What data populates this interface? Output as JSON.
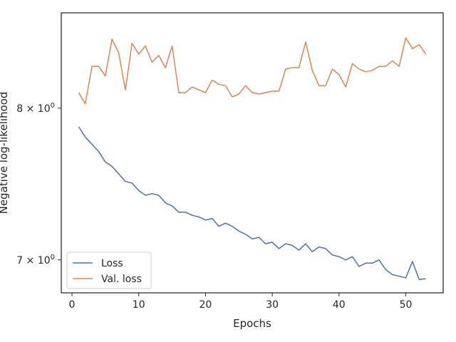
{
  "chart_data": {
    "type": "line",
    "title": "",
    "xlabel": "Epochs",
    "ylabel": "Negative log-likelihood",
    "y_scale": "log",
    "xlim": [
      -1.6,
      55.6
    ],
    "ylim": [
      6.8,
      8.7
    ],
    "x_ticks": [
      0,
      10,
      20,
      30,
      40,
      50
    ],
    "x_tick_labels": [
      "0",
      "10",
      "20",
      "30",
      "40",
      "50"
    ],
    "y_ticks": [
      7,
      8
    ],
    "y_tick_base": [
      "7 × 10",
      "8 × 10"
    ],
    "y_tick_exp": [
      "0",
      "0"
    ],
    "grid": false,
    "legend_position": "lower-left",
    "series": [
      {
        "name": "Loss",
        "color": "#4c72b0",
        "x": [
          1,
          2,
          3,
          4,
          5,
          6,
          7,
          8,
          9,
          10,
          11,
          12,
          13,
          14,
          15,
          16,
          17,
          18,
          19,
          20,
          21,
          22,
          23,
          24,
          25,
          26,
          27,
          28,
          29,
          30,
          31,
          32,
          33,
          34,
          35,
          36,
          37,
          38,
          39,
          40,
          41,
          42,
          43,
          44,
          45,
          46,
          47,
          48,
          49,
          50,
          51,
          52,
          53
        ],
        "values": [
          7.87,
          7.8,
          7.75,
          7.7,
          7.63,
          7.6,
          7.55,
          7.5,
          7.49,
          7.44,
          7.41,
          7.42,
          7.41,
          7.36,
          7.34,
          7.3,
          7.3,
          7.28,
          7.27,
          7.25,
          7.26,
          7.21,
          7.23,
          7.21,
          7.18,
          7.16,
          7.13,
          7.14,
          7.1,
          7.11,
          7.07,
          7.1,
          7.09,
          7.06,
          7.1,
          7.05,
          7.08,
          7.07,
          7.03,
          7.02,
          7.0,
          7.02,
          6.96,
          6.98,
          6.98,
          7.0,
          6.94,
          6.91,
          6.9,
          6.89,
          6.99,
          6.88,
          6.885
        ]
      },
      {
        "name": "Val. loss",
        "color": "#dd8452",
        "x": [
          1,
          2,
          3,
          4,
          5,
          6,
          7,
          8,
          9,
          10,
          11,
          12,
          13,
          14,
          15,
          16,
          17,
          18,
          19,
          20,
          21,
          22,
          23,
          24,
          25,
          26,
          27,
          28,
          29,
          30,
          31,
          32,
          33,
          34,
          35,
          36,
          37,
          38,
          39,
          40,
          41,
          42,
          43,
          44,
          45,
          46,
          47,
          48,
          49,
          50,
          51,
          52,
          53
        ],
        "values": [
          8.11,
          8.03,
          8.3,
          8.3,
          8.23,
          8.5,
          8.4,
          8.13,
          8.47,
          8.39,
          8.45,
          8.33,
          8.38,
          8.29,
          8.45,
          8.11,
          8.11,
          8.15,
          8.13,
          8.11,
          8.2,
          8.17,
          8.16,
          8.08,
          8.1,
          8.16,
          8.11,
          8.1,
          8.11,
          8.12,
          8.12,
          8.28,
          8.29,
          8.29,
          8.48,
          8.27,
          8.16,
          8.16,
          8.28,
          8.24,
          8.15,
          8.32,
          8.28,
          8.26,
          8.27,
          8.3,
          8.3,
          8.34,
          8.3,
          8.51,
          8.43,
          8.46,
          8.39
        ]
      }
    ]
  }
}
